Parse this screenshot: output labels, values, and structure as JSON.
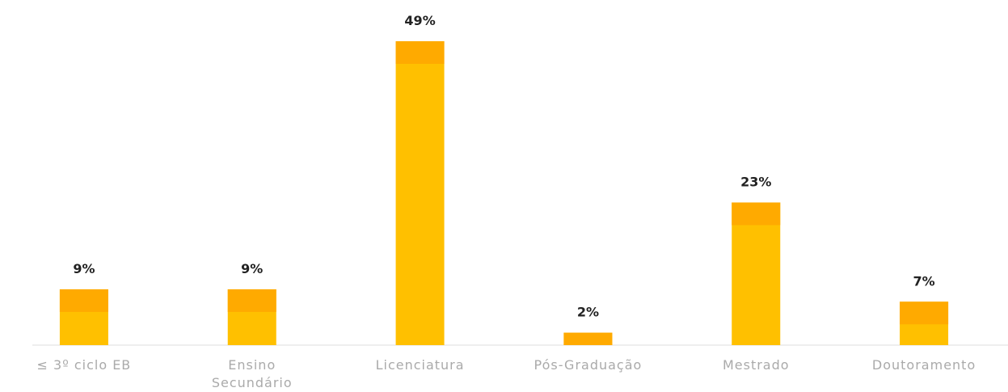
{
  "chart_data": {
    "type": "bar",
    "categories": [
      "≤ 3º ciclo EB",
      "Ensino Secundário",
      "Licenciatura",
      "Pós-Graduação",
      "Mestrado",
      "Doutoramento"
    ],
    "values": [
      9,
      9,
      49,
      2,
      23,
      7
    ],
    "value_labels": [
      "9%",
      "9%",
      "49%",
      "2%",
      "23%",
      "7%"
    ],
    "color": "#ffc000"
  }
}
